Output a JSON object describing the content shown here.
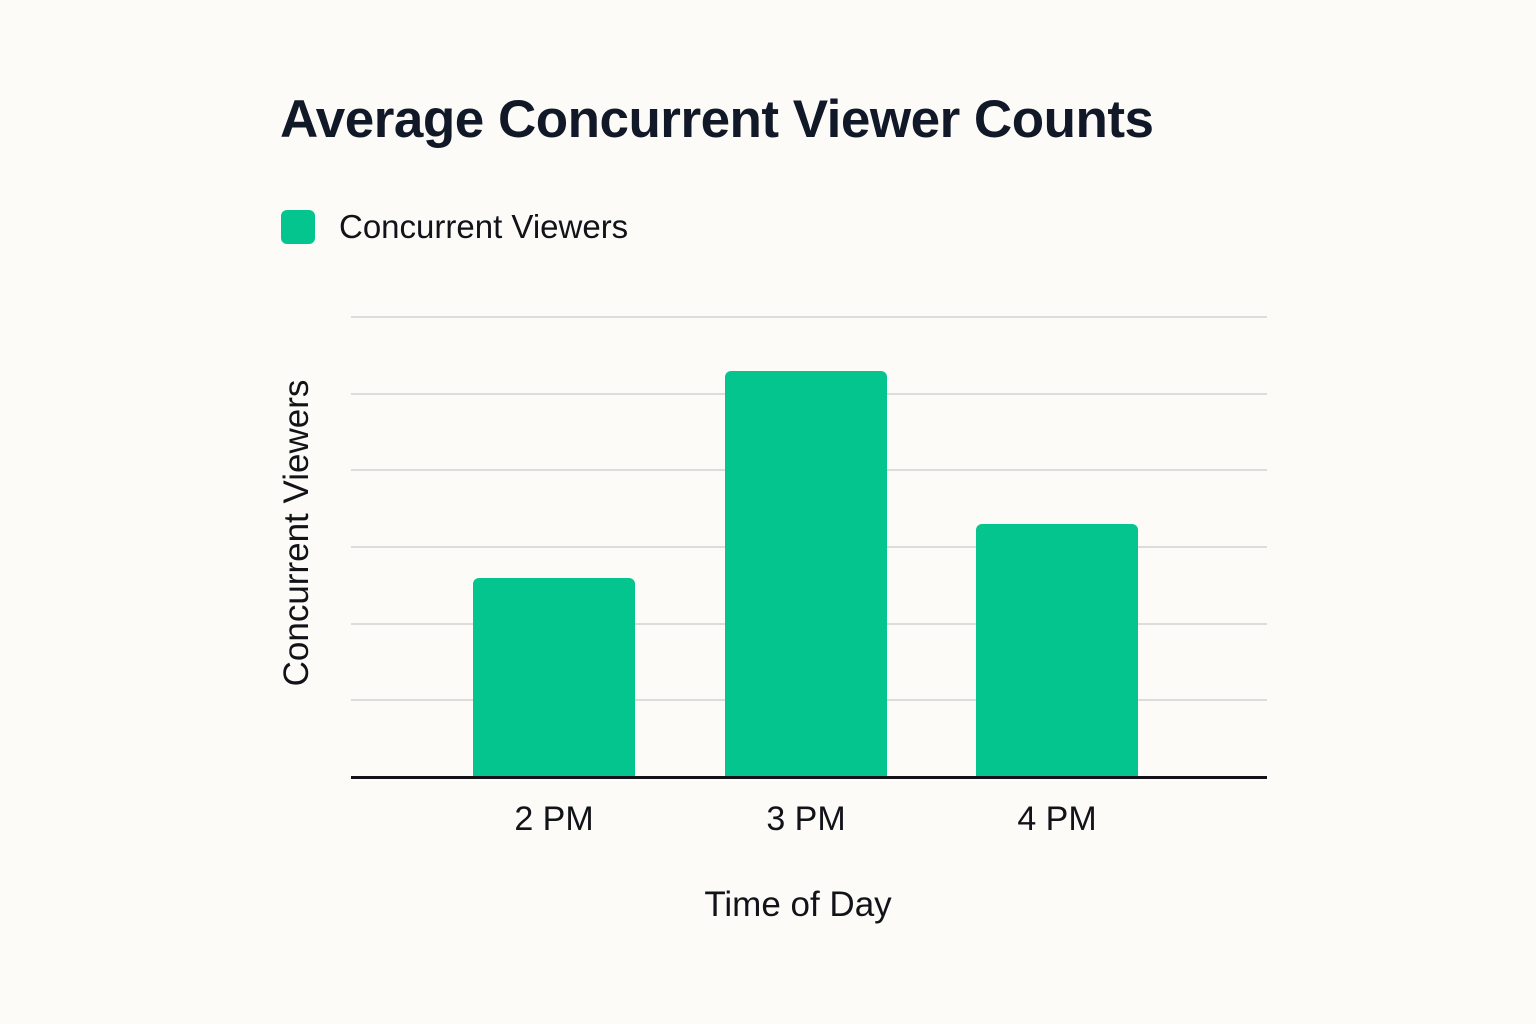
{
  "chart_data": {
    "type": "bar",
    "title": "Average Concurrent Viewer Counts",
    "xlabel": "Time of Day",
    "ylabel": "Concurrent Viewers",
    "categories": [
      "2 PM",
      "3 PM",
      "4 PM"
    ],
    "series": [
      {
        "name": "Concurrent Viewers",
        "color": "#05c58e",
        "values": [
          2.6,
          5.3,
          3.3
        ]
      }
    ],
    "ylim": [
      0,
      6
    ],
    "y_units_note": "no y tick labels shown; values in gridline units (6 gridlines above baseline)",
    "grid": true,
    "legend_position": "top-left",
    "colors": {
      "bar": "#05c58e",
      "gridline": "#dcdcdc",
      "baseline": "#111318",
      "background": "#fcfbf7",
      "text": "#111827"
    }
  }
}
